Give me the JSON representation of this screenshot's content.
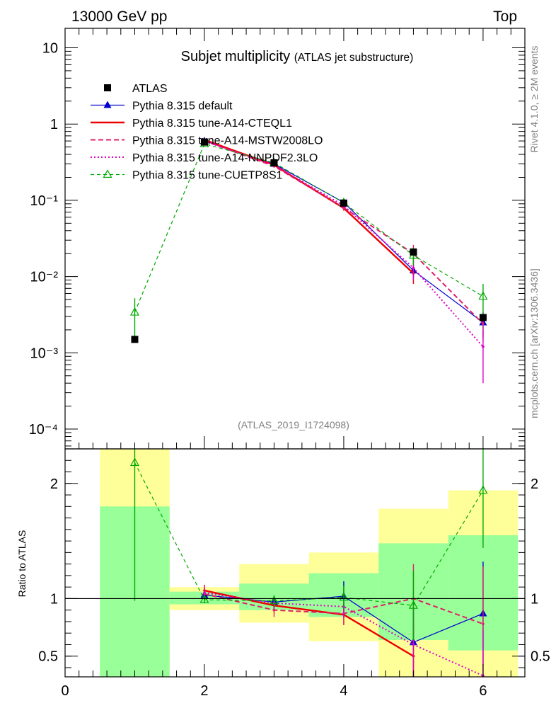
{
  "header": {
    "left": "13000 GeV pp",
    "right": "Top"
  },
  "side_labels": {
    "top": "Rivet 4.1.0, ≥ 2M events",
    "bottom": "mcplots.cern.ch [arXiv:1306.3436]"
  },
  "chart_data": {
    "type": "line",
    "title": "Subjet multiplicity",
    "subtitle": "(ATLAS jet substructure)",
    "watermark": "(ATLAS_2019_I1724098)",
    "x": [
      1,
      2,
      3,
      4,
      5,
      6
    ],
    "xlim": [
      0,
      6.6
    ],
    "ylim": [
      5.5e-05,
      18
    ],
    "ylog": true,
    "y_ticks": [
      {
        "v": 10,
        "label": "10"
      },
      {
        "v": 1,
        "label": "1"
      },
      {
        "v": 0.1,
        "label": "10⁻¹"
      },
      {
        "v": 0.01,
        "label": "10⁻²"
      },
      {
        "v": 0.001,
        "label": "10⁻³"
      },
      {
        "v": 0.0001,
        "label": "10⁻⁴"
      }
    ],
    "x_ticks": [
      {
        "v": 0,
        "label": "0"
      },
      {
        "v": 2,
        "label": "2"
      },
      {
        "v": 4,
        "label": "4"
      },
      {
        "v": 6,
        "label": "6"
      }
    ],
    "ratio": {
      "ylabel": "Ratio to ATLAS",
      "ylim": [
        0.32,
        2.3
      ],
      "ticks": [
        {
          "v": 0.5,
          "label": "0.5"
        },
        {
          "v": 1,
          "label": "1"
        },
        {
          "v": 2,
          "label": "2"
        }
      ]
    },
    "bands": [
      {
        "x0": 0.5,
        "x1": 1.5,
        "y_lo": 0.32,
        "y_hi": 2.3,
        "g_lo": 0.32,
        "g_hi": 1.8
      },
      {
        "x0": 1.5,
        "x1": 2.5,
        "y_lo": 0.9,
        "y_hi": 1.1,
        "g_lo": 0.95,
        "g_hi": 1.06
      },
      {
        "x0": 2.5,
        "x1": 3.5,
        "y_lo": 0.79,
        "y_hi": 1.3,
        "g_lo": 0.9,
        "g_hi": 1.13
      },
      {
        "x0": 3.5,
        "x1": 4.5,
        "y_lo": 0.63,
        "y_hi": 1.4,
        "g_lo": 0.84,
        "g_hi": 1.22
      },
      {
        "x0": 4.5,
        "x1": 5.5,
        "y_lo": 0.32,
        "y_hi": 1.78,
        "g_lo": 0.64,
        "g_hi": 1.48
      },
      {
        "x0": 5.5,
        "x1": 6.5,
        "y_lo": 0.32,
        "y_hi": 1.94,
        "g_lo": 0.55,
        "g_hi": 1.55
      }
    ],
    "series": [
      {
        "name": "ATLAS",
        "style": "data",
        "color": "#000000",
        "marker": "square",
        "x": [
          1,
          2,
          3,
          4,
          5,
          6
        ],
        "values": [
          0.0015,
          0.58,
          0.31,
          0.092,
          0.021,
          0.0029
        ],
        "ratio": [
          1,
          1,
          1,
          1,
          1,
          1
        ]
      },
      {
        "name": "Pythia 8.315 default",
        "style": "solid",
        "color": "#0000cc",
        "width": 1.2,
        "marker": "triangle",
        "x": [
          2,
          3,
          4,
          5,
          6
        ],
        "values": [
          0.6,
          0.3,
          0.094,
          0.012,
          0.0025
        ],
        "err": [
          0.02,
          0.012,
          0.006,
          0.0025,
          0.0009
        ],
        "ratio": [
          1.03,
          0.97,
          1.02,
          0.62,
          0.87
        ],
        "ratio_err": [
          0.04,
          0.05,
          0.13,
          0.3,
          0.45
        ]
      },
      {
        "name": "Pythia 8.315 tune-A14-CTEQL1",
        "style": "solid",
        "color": "#ee0000",
        "width": 2.4,
        "marker": "none",
        "x": [
          2,
          3,
          4,
          5
        ],
        "values": [
          0.62,
          0.29,
          0.079,
          0.011
        ],
        "err": [
          0.02,
          0.012,
          0.006,
          0.003
        ],
        "ratio": [
          1.07,
          0.94,
          0.86,
          0.5
        ],
        "ratio_err": [
          0.05,
          0.06,
          0.09,
          0.3
        ]
      },
      {
        "name": "Pythia 8.315 tune-A14-MSTW2008LO",
        "style": "dashed",
        "color": "#e0206a",
        "width": 2,
        "marker": "none",
        "x": [
          2,
          3,
          4,
          5,
          6
        ],
        "values": [
          0.6,
          0.28,
          0.08,
          0.02,
          0.0024
        ],
        "err": [
          0.02,
          0.012,
          0.006,
          0.006,
          0.001
        ],
        "ratio": [
          1.04,
          0.9,
          0.87,
          1.0,
          0.78
        ],
        "ratio_err": [
          0.05,
          0.06,
          0.1,
          0.3,
          0.5
        ]
      },
      {
        "name": "Pythia 8.315 tune-A14-NNPDF2.3LO",
        "style": "dotted",
        "color": "#e000c8",
        "width": 2,
        "marker": "none",
        "x": [
          2,
          3,
          4,
          5,
          6
        ],
        "values": [
          0.6,
          0.29,
          0.085,
          0.013,
          0.0012
        ],
        "err": [
          0.02,
          0.012,
          0.006,
          0.004,
          0.0008
        ],
        "ratio": [
          1.05,
          0.96,
          0.93,
          0.6,
          0.33
        ],
        "ratio_err": [
          0.05,
          0.05,
          0.1,
          0.35,
          0.4
        ]
      },
      {
        "name": "Pythia 8.315 tune-CUETP8S1",
        "style": "dashed",
        "color": "#00aa00",
        "width": 1.2,
        "marker": "open-triangle",
        "x": [
          1,
          2,
          3,
          4,
          5,
          6
        ],
        "values": [
          0.0034,
          0.55,
          0.31,
          0.093,
          0.019,
          0.0055
        ],
        "err": [
          0.0018,
          0.02,
          0.012,
          0.006,
          0.005,
          0.0025
        ],
        "ratio": [
          2.18,
          0.99,
          0.98,
          1.01,
          0.94,
          1.94
        ],
        "ratio_err": [
          1.2,
          0.03,
          0.05,
          0.1,
          0.3,
          0.5
        ]
      }
    ]
  }
}
